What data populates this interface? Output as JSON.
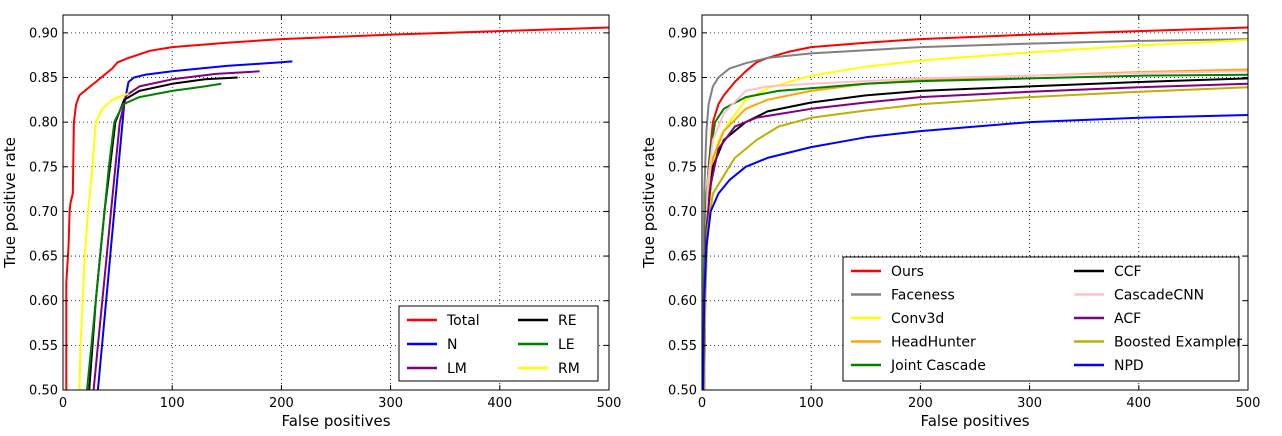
{
  "chart_data": [
    {
      "type": "line",
      "xlabel": "False positives",
      "ylabel": "True positive rate",
      "xlim": [
        0,
        500
      ],
      "ylim": [
        0.5,
        0.92
      ],
      "xticks": [
        0,
        100,
        200,
        300,
        400,
        500
      ],
      "yticks": [
        0.5,
        0.55,
        0.6,
        0.65,
        0.7,
        0.75,
        0.8,
        0.85,
        0.9
      ],
      "xtick_labels": [
        "0",
        "100",
        "200",
        "300",
        "400",
        "500"
      ],
      "ytick_labels": [
        "0.50",
        "0.55",
        "0.60",
        "0.65",
        "0.70",
        "0.75",
        "0.80",
        "0.85",
        "0.90"
      ],
      "grid": true,
      "legend": {
        "placement": "bottom-right",
        "columns": 2
      },
      "series": [
        {
          "name": "Total",
          "color": "#ff0000",
          "points": [
            [
              3,
              0.5
            ],
            [
              3,
              0.62
            ],
            [
              5,
              0.66
            ],
            [
              6,
              0.7
            ],
            [
              7,
              0.71
            ],
            [
              9,
              0.72
            ],
            [
              10,
              0.8
            ],
            [
              11,
              0.81
            ],
            [
              12,
              0.82
            ],
            [
              15,
              0.83
            ],
            [
              20,
              0.835
            ],
            [
              25,
              0.84
            ],
            [
              30,
              0.845
            ],
            [
              35,
              0.85
            ],
            [
              40,
              0.855
            ],
            [
              45,
              0.86
            ],
            [
              50,
              0.867
            ],
            [
              60,
              0.872
            ],
            [
              70,
              0.876
            ],
            [
              80,
              0.88
            ],
            [
              100,
              0.884
            ],
            [
              150,
              0.889
            ],
            [
              200,
              0.893
            ],
            [
              300,
              0.898
            ],
            [
              400,
              0.902
            ],
            [
              500,
              0.906
            ]
          ]
        },
        {
          "name": "N",
          "color": "#0000ff",
          "points": [
            [
              32,
              0.5
            ],
            [
              35,
              0.54
            ],
            [
              38,
              0.58
            ],
            [
              41,
              0.62
            ],
            [
              44,
              0.66
            ],
            [
              47,
              0.7
            ],
            [
              50,
              0.74
            ],
            [
              53,
              0.78
            ],
            [
              56,
              0.82
            ],
            [
              60,
              0.845
            ],
            [
              65,
              0.85
            ],
            [
              75,
              0.853
            ],
            [
              100,
              0.857
            ],
            [
              150,
              0.863
            ],
            [
              200,
              0.867
            ],
            [
              210,
              0.868
            ]
          ]
        },
        {
          "name": "LM",
          "color": "#800080",
          "points": [
            [
              28,
              0.5
            ],
            [
              32,
              0.55
            ],
            [
              36,
              0.6
            ],
            [
              40,
              0.65
            ],
            [
              44,
              0.7
            ],
            [
              48,
              0.75
            ],
            [
              52,
              0.8
            ],
            [
              58,
              0.83
            ],
            [
              70,
              0.84
            ],
            [
              100,
              0.848
            ],
            [
              140,
              0.854
            ],
            [
              180,
              0.857
            ]
          ]
        },
        {
          "name": "RE",
          "color": "#000000",
          "points": [
            [
              24,
              0.5
            ],
            [
              27,
              0.55
            ],
            [
              30,
              0.6
            ],
            [
              34,
              0.65
            ],
            [
              38,
              0.7
            ],
            [
              43,
              0.75
            ],
            [
              48,
              0.8
            ],
            [
              56,
              0.825
            ],
            [
              70,
              0.835
            ],
            [
              100,
              0.843
            ],
            [
              130,
              0.848
            ],
            [
              160,
              0.85
            ]
          ]
        },
        {
          "name": "LE",
          "color": "#008000",
          "points": [
            [
              22,
              0.5
            ],
            [
              26,
              0.55
            ],
            [
              30,
              0.6
            ],
            [
              34,
              0.65
            ],
            [
              38,
              0.7
            ],
            [
              42,
              0.75
            ],
            [
              47,
              0.8
            ],
            [
              55,
              0.82
            ],
            [
              70,
              0.828
            ],
            [
              100,
              0.835
            ],
            [
              130,
              0.84
            ],
            [
              145,
              0.843
            ]
          ]
        },
        {
          "name": "RM",
          "color": "#ffff00",
          "points": [
            [
              15,
              0.5
            ],
            [
              16,
              0.55
            ],
            [
              18,
              0.6
            ],
            [
              20,
              0.65
            ],
            [
              23,
              0.7
            ],
            [
              27,
              0.75
            ],
            [
              30,
              0.8
            ],
            [
              36,
              0.815
            ],
            [
              45,
              0.825
            ],
            [
              55,
              0.83
            ],
            [
              60,
              0.832
            ]
          ]
        }
      ]
    },
    {
      "type": "line",
      "xlabel": "False positives",
      "ylabel": "True positive rate",
      "xlim": [
        0,
        500
      ],
      "ylim": [
        0.5,
        0.92
      ],
      "xticks": [
        0,
        100,
        200,
        300,
        400,
        500
      ],
      "yticks": [
        0.5,
        0.55,
        0.6,
        0.65,
        0.7,
        0.75,
        0.8,
        0.85,
        0.9
      ],
      "xtick_labels": [
        "0",
        "100",
        "200",
        "300",
        "400",
        "500"
      ],
      "ytick_labels": [
        "0.50",
        "0.55",
        "0.60",
        "0.65",
        "0.70",
        "0.75",
        "0.80",
        "0.85",
        "0.90"
      ],
      "grid": true,
      "legend": {
        "placement": "bottom-right",
        "columns": 2
      },
      "series": [
        {
          "name": "Ours",
          "color": "#ff0000",
          "points": [
            [
              1,
              0.5
            ],
            [
              2,
              0.66
            ],
            [
              4,
              0.7
            ],
            [
              6,
              0.75
            ],
            [
              10,
              0.8
            ],
            [
              15,
              0.82
            ],
            [
              20,
              0.83
            ],
            [
              30,
              0.845
            ],
            [
              40,
              0.857
            ],
            [
              50,
              0.867
            ],
            [
              60,
              0.872
            ],
            [
              80,
              0.879
            ],
            [
              100,
              0.884
            ],
            [
              150,
              0.889
            ],
            [
              200,
              0.893
            ],
            [
              300,
              0.898
            ],
            [
              400,
              0.902
            ],
            [
              500,
              0.906
            ]
          ]
        },
        {
          "name": "Faceness",
          "color": "#808080",
          "points": [
            [
              1,
              0.5
            ],
            [
              2,
              0.72
            ],
            [
              4,
              0.79
            ],
            [
              6,
              0.82
            ],
            [
              10,
              0.84
            ],
            [
              15,
              0.85
            ],
            [
              25,
              0.86
            ],
            [
              40,
              0.866
            ],
            [
              60,
              0.872
            ],
            [
              100,
              0.877
            ],
            [
              200,
              0.884
            ],
            [
              300,
              0.888
            ],
            [
              400,
              0.891
            ],
            [
              500,
              0.893
            ]
          ]
        },
        {
          "name": "Conv3d",
          "color": "#ffff00",
          "points": [
            [
              2,
              0.5
            ],
            [
              3,
              0.6
            ],
            [
              5,
              0.68
            ],
            [
              10,
              0.75
            ],
            [
              15,
              0.78
            ],
            [
              25,
              0.8
            ],
            [
              40,
              0.825
            ],
            [
              60,
              0.838
            ],
            [
              100,
              0.852
            ],
            [
              150,
              0.862
            ],
            [
              200,
              0.869
            ],
            [
              300,
              0.878
            ],
            [
              400,
              0.886
            ],
            [
              500,
              0.892
            ]
          ]
        },
        {
          "name": "HeadHunter",
          "color": "#ffa500",
          "points": [
            [
              2,
              0.5
            ],
            [
              3,
              0.62
            ],
            [
              5,
              0.7
            ],
            [
              10,
              0.76
            ],
            [
              20,
              0.79
            ],
            [
              40,
              0.815
            ],
            [
              60,
              0.825
            ],
            [
              100,
              0.835
            ],
            [
              150,
              0.843
            ],
            [
              200,
              0.847
            ],
            [
              300,
              0.852
            ],
            [
              400,
              0.856
            ],
            [
              500,
              0.859
            ]
          ]
        },
        {
          "name": "Joint Cascade",
          "color": "#008000",
          "points": [
            [
              1,
              0.5
            ],
            [
              2,
              0.63
            ],
            [
              4,
              0.72
            ],
            [
              8,
              0.77
            ],
            [
              12,
              0.8
            ],
            [
              20,
              0.815
            ],
            [
              40,
              0.828
            ],
            [
              70,
              0.835
            ],
            [
              100,
              0.838
            ],
            [
              150,
              0.843
            ],
            [
              200,
              0.846
            ],
            [
              300,
              0.849
            ],
            [
              400,
              0.852
            ],
            [
              500,
              0.853
            ]
          ]
        },
        {
          "name": "CCF",
          "color": "#000000",
          "points": [
            [
              2,
              0.5
            ],
            [
              3,
              0.62
            ],
            [
              5,
              0.7
            ],
            [
              10,
              0.75
            ],
            [
              20,
              0.78
            ],
            [
              40,
              0.8
            ],
            [
              60,
              0.812
            ],
            [
              100,
              0.822
            ],
            [
              150,
              0.83
            ],
            [
              200,
              0.835
            ],
            [
              300,
              0.84
            ],
            [
              400,
              0.845
            ],
            [
              500,
              0.849
            ]
          ]
        },
        {
          "name": "CascadeCNN",
          "color": "#ffc0cb",
          "points": [
            [
              2,
              0.5
            ],
            [
              3,
              0.64
            ],
            [
              5,
              0.73
            ],
            [
              10,
              0.78
            ],
            [
              20,
              0.81
            ],
            [
              40,
              0.835
            ],
            [
              60,
              0.84
            ],
            [
              100,
              0.843
            ],
            [
              150,
              0.846
            ],
            [
              200,
              0.849
            ],
            [
              300,
              0.852
            ],
            [
              400,
              0.855
            ],
            [
              500,
              0.857
            ]
          ]
        },
        {
          "name": "ACF",
          "color": "#800080",
          "points": [
            [
              1,
              0.5
            ],
            [
              2,
              0.6
            ],
            [
              4,
              0.68
            ],
            [
              8,
              0.73
            ],
            [
              15,
              0.77
            ],
            [
              30,
              0.795
            ],
            [
              50,
              0.805
            ],
            [
              100,
              0.815
            ],
            [
              150,
              0.822
            ],
            [
              200,
              0.828
            ],
            [
              300,
              0.834
            ],
            [
              400,
              0.839
            ],
            [
              500,
              0.843
            ]
          ]
        },
        {
          "name": "Boosted Exampler",
          "color": "#bdb000",
          "points": [
            [
              2,
              0.5
            ],
            [
              3,
              0.6
            ],
            [
              5,
              0.68
            ],
            [
              10,
              0.72
            ],
            [
              20,
              0.74
            ],
            [
              30,
              0.76
            ],
            [
              50,
              0.78
            ],
            [
              70,
              0.795
            ],
            [
              100,
              0.805
            ],
            [
              150,
              0.813
            ],
            [
              200,
              0.82
            ],
            [
              300,
              0.828
            ],
            [
              400,
              0.834
            ],
            [
              500,
              0.839
            ]
          ]
        },
        {
          "name": "NPD",
          "color": "#0000ff",
          "points": [
            [
              1,
              0.5
            ],
            [
              2,
              0.6
            ],
            [
              4,
              0.66
            ],
            [
              8,
              0.7
            ],
            [
              15,
              0.72
            ],
            [
              25,
              0.735
            ],
            [
              40,
              0.75
            ],
            [
              60,
              0.76
            ],
            [
              100,
              0.772
            ],
            [
              150,
              0.783
            ],
            [
              200,
              0.79
            ],
            [
              300,
              0.8
            ],
            [
              400,
              0.805
            ],
            [
              500,
              0.808
            ]
          ]
        }
      ]
    }
  ]
}
